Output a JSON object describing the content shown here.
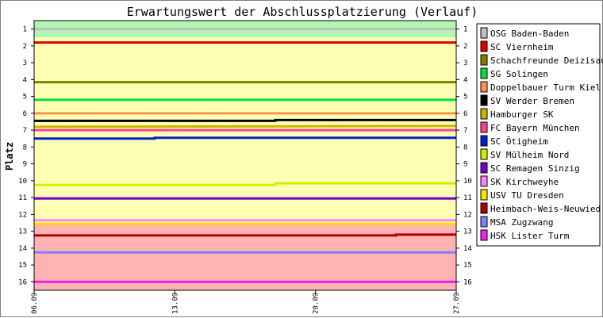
{
  "chart_data": {
    "type": "line",
    "title": "Erwartungswert der Abschlussplatzierung (Verlauf)",
    "xlabel": "",
    "ylabel": "Platz",
    "x_ticks": [
      "06.09",
      "13.09",
      "20.09",
      "27.09"
    ],
    "x_range": [
      "06.09",
      "27.09"
    ],
    "ylim": [
      16,
      1
    ],
    "y_ticks": [
      1,
      2,
      3,
      4,
      5,
      6,
      7,
      8,
      9,
      10,
      11,
      12,
      13,
      14,
      15,
      16
    ],
    "y_inverted": true,
    "bands": [
      {
        "from": 0.5,
        "to": 1.5,
        "color": "#b3f5b3"
      },
      {
        "from": 1.5,
        "to": 12.5,
        "color": "#ffffb3"
      },
      {
        "from": 12.5,
        "to": 16.5,
        "color": "#ffb3b3"
      }
    ],
    "legend_position": "right",
    "series": [
      {
        "name": "OSG Baden-Baden",
        "color": "#c0c0c0",
        "points": [
          [
            "06.09",
            1
          ],
          [
            "27.09",
            1
          ]
        ]
      },
      {
        "name": "SC Viernheim",
        "color": "#e00000",
        "points": [
          [
            "06.09",
            1.8
          ],
          [
            "27.09",
            1.8
          ]
        ]
      },
      {
        "name": "Schachfreunde Deizisau",
        "color": "#808000",
        "points": [
          [
            "06.09",
            4.15
          ],
          [
            "27.09",
            4.15
          ]
        ]
      },
      {
        "name": "SG Solingen",
        "color": "#00e040",
        "points": [
          [
            "06.09",
            5.2
          ],
          [
            "27.09",
            5.2
          ]
        ]
      },
      {
        "name": "Doppelbauer Turm Kiel",
        "color": "#ff9050",
        "points": [
          [
            "06.09",
            6.0
          ],
          [
            "27.09",
            6.0
          ]
        ]
      },
      {
        "name": "SV Werder Bremen",
        "color": "#000000",
        "points": [
          [
            "06.09",
            6.45
          ],
          [
            "18.09",
            6.45
          ],
          [
            "18.09",
            6.4
          ],
          [
            "27.09",
            6.4
          ]
        ]
      },
      {
        "name": "Hamburger SK",
        "color": "#c8b400",
        "points": [
          [
            "06.09",
            6.8
          ],
          [
            "27.09",
            6.75
          ]
        ]
      },
      {
        "name": "FC Bayern München",
        "color": "#ff4090",
        "points": [
          [
            "06.09",
            7.0
          ],
          [
            "27.09",
            7.0
          ]
        ]
      },
      {
        "name": "SC Ötigheim",
        "color": "#0020d0",
        "points": [
          [
            "06.09",
            7.5
          ],
          [
            "12.09",
            7.5
          ],
          [
            "12.09",
            7.45
          ],
          [
            "27.09",
            7.45
          ]
        ]
      },
      {
        "name": "SV Mülheim Nord",
        "color": "#d0f000",
        "points": [
          [
            "06.09",
            10.25
          ],
          [
            "18.09",
            10.25
          ],
          [
            "18.09",
            10.15
          ],
          [
            "27.09",
            10.15
          ]
        ]
      },
      {
        "name": "SC Remagen Sinzig",
        "color": "#7000d0",
        "points": [
          [
            "06.09",
            11.05
          ],
          [
            "27.09",
            11.05
          ]
        ]
      },
      {
        "name": "SK Kirchweyhe",
        "color": "#ff80ff",
        "points": [
          [
            "06.09",
            12.35
          ],
          [
            "27.09",
            12.35
          ]
        ]
      },
      {
        "name": "USV TU Dresden",
        "color": "#ffe000",
        "points": [
          [
            "06.09",
            12.55
          ],
          [
            "27.09",
            12.55
          ]
        ]
      },
      {
        "name": "Heimbach-Weis-Neuwied",
        "color": "#b00000",
        "points": [
          [
            "06.09",
            13.25
          ],
          [
            "24.09",
            13.25
          ],
          [
            "24.09",
            13.2
          ],
          [
            "27.09",
            13.2
          ]
        ]
      },
      {
        "name": "MSA Zugzwang",
        "color": "#8080ff",
        "points": [
          [
            "06.09",
            14.25
          ],
          [
            "27.09",
            14.25
          ]
        ]
      },
      {
        "name": "HSK Lister Turm",
        "color": "#f020f0",
        "points": [
          [
            "06.09",
            16.0
          ],
          [
            "27.09",
            16.0
          ]
        ]
      }
    ]
  }
}
